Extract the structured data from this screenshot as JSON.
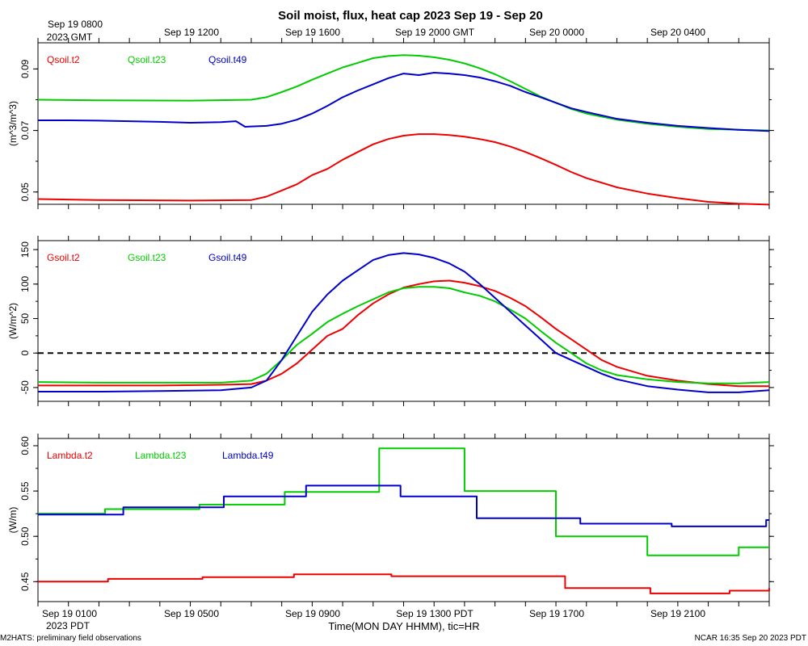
{
  "title": "Soil moist, flux, heat cap 2023 Sep 19 - Sep 20",
  "top_axis": {
    "ticks": [
      {
        "label": "Sep 19 0800",
        "sub": "2023 GMT"
      },
      {
        "label": "Sep 19 1200",
        "sub": ""
      },
      {
        "label": "Sep 19 1600",
        "sub": ""
      },
      {
        "label": "Sep 19 2000 GMT",
        "sub": ""
      },
      {
        "label": "Sep 20 0000",
        "sub": ""
      },
      {
        "label": "Sep 20 0400",
        "sub": ""
      }
    ]
  },
  "bottom_axis": {
    "ticks": [
      {
        "label": "Sep 19 0100",
        "sub": "2023 PDT"
      },
      {
        "label": "Sep 19 0500",
        "sub": ""
      },
      {
        "label": "Sep 19 0900",
        "sub": ""
      },
      {
        "label": "Sep 19 1300 PDT",
        "sub": ""
      },
      {
        "label": "Sep 19 1700",
        "sub": ""
      },
      {
        "label": "Sep 19 2100",
        "sub": ""
      }
    ],
    "xlabel": "Time(MON DAY HHMM), tic=HR"
  },
  "footer": {
    "left": "M2HATS: preliminary field observations",
    "right": "NCAR 16:35 Sep 20 2023 PDT"
  },
  "colors": {
    "t2": "#ee0000",
    "t23": "#00cc00",
    "t49": "#0000cc",
    "zero_line": "#000000"
  },
  "chart_data": [
    {
      "type": "line",
      "name": "soil-moisture",
      "ylabel": "(m^3/m^3)",
      "xlim": [
        0,
        24
      ],
      "x_units": "hours after Sep 19 0100 PDT",
      "ylim": [
        0.046,
        0.0985
      ],
      "yticks": [
        0.05,
        0.07,
        0.09
      ],
      "ytick_labels": [
        "0.05",
        "0.07",
        "0.09"
      ],
      "series": [
        {
          "name": "Qsoil.t2",
          "color": "#ee0000",
          "step": false,
          "x": [
            0,
            2,
            5,
            7,
            7.5,
            8,
            8.5,
            9,
            9.5,
            10,
            10.5,
            11,
            11.5,
            12,
            12.5,
            13,
            13.5,
            14,
            14.5,
            15,
            15.5,
            16,
            16.5,
            17,
            17.5,
            18,
            19,
            20,
            21,
            22,
            23,
            24
          ],
          "y": [
            0.0477,
            0.0474,
            0.0472,
            0.0474,
            0.0485,
            0.0505,
            0.0525,
            0.0555,
            0.0575,
            0.0605,
            0.063,
            0.0655,
            0.0672,
            0.0683,
            0.0688,
            0.0688,
            0.0685,
            0.068,
            0.0672,
            0.0662,
            0.0648,
            0.063,
            0.061,
            0.0588,
            0.0565,
            0.0545,
            0.0515,
            0.0495,
            0.048,
            0.0468,
            0.0462,
            0.0459
          ]
        },
        {
          "name": "Qsoil.t23",
          "color": "#00cc00",
          "step": false,
          "x": [
            0,
            2,
            5,
            7,
            7.5,
            8,
            8.5,
            9,
            9.5,
            10,
            10.5,
            11,
            11.5,
            12,
            12.5,
            13,
            13.5,
            14,
            14.5,
            15,
            15.5,
            16,
            16.5,
            17,
            17.5,
            18,
            19,
            20,
            21,
            22,
            23,
            24
          ],
          "y": [
            0.08,
            0.0798,
            0.0797,
            0.08,
            0.0808,
            0.0825,
            0.0843,
            0.0865,
            0.0885,
            0.0905,
            0.092,
            0.0935,
            0.0942,
            0.0945,
            0.0943,
            0.0938,
            0.093,
            0.0918,
            0.0902,
            0.0883,
            0.086,
            0.0835,
            0.081,
            0.079,
            0.077,
            0.0755,
            0.0735,
            0.0722,
            0.0712,
            0.0705,
            0.0702,
            0.07
          ]
        },
        {
          "name": "Qsoil.t49",
          "color": "#0000cc",
          "step": false,
          "x": [
            0,
            1,
            2,
            3,
            4,
            5,
            6,
            6.5,
            6.8,
            7,
            7.5,
            8,
            8.5,
            9,
            9.5,
            10,
            10.5,
            11,
            11.5,
            12,
            12.5,
            13,
            13.5,
            14,
            14.5,
            15,
            15.5,
            16,
            16.5,
            17,
            17.5,
            18,
            19,
            20,
            21,
            22,
            23,
            24
          ],
          "y": [
            0.0733,
            0.0733,
            0.0732,
            0.073,
            0.0728,
            0.0725,
            0.0727,
            0.073,
            0.0712,
            0.0713,
            0.0715,
            0.0722,
            0.0735,
            0.0755,
            0.078,
            0.0808,
            0.083,
            0.085,
            0.087,
            0.0885,
            0.088,
            0.0888,
            0.0885,
            0.088,
            0.0872,
            0.086,
            0.0845,
            0.0825,
            0.0808,
            0.079,
            0.0772,
            0.076,
            0.0738,
            0.0725,
            0.0715,
            0.0708,
            0.0702,
            0.0698
          ]
        }
      ]
    },
    {
      "type": "line",
      "name": "heat-flux",
      "ylabel": "(W/m^2)",
      "xlim": [
        0,
        24
      ],
      "x_units": "hours after Sep 19 0100 PDT",
      "ylim": [
        -70,
        163
      ],
      "yticks": [
        -50,
        0,
        50,
        100,
        150
      ],
      "ytick_labels": [
        "-50",
        "0",
        "50",
        "100",
        "150"
      ],
      "zero_line": true,
      "series": [
        {
          "name": "Gsoil.t2",
          "color": "#ee0000",
          "step": false,
          "x": [
            0,
            2,
            4,
            6,
            7,
            7.5,
            8,
            8.5,
            9,
            9.5,
            10,
            10.5,
            11,
            11.5,
            12,
            12.5,
            13,
            13.5,
            14,
            14.5,
            15,
            15.5,
            16,
            16.5,
            17,
            17.5,
            18,
            18.5,
            19,
            20,
            21,
            22,
            23,
            24
          ],
          "y": [
            -47,
            -47,
            -47,
            -46,
            -45,
            -40,
            -30,
            -15,
            5,
            25,
            35,
            55,
            72,
            85,
            95,
            100,
            104,
            105,
            102,
            97,
            90,
            80,
            68,
            52,
            35,
            20,
            5,
            -10,
            -20,
            -33,
            -40,
            -45,
            -48,
            -48
          ]
        },
        {
          "name": "Gsoil.t23",
          "color": "#00cc00",
          "step": false,
          "x": [
            0,
            2,
            4,
            6,
            7,
            7.5,
            8,
            8.5,
            9,
            9.5,
            10,
            10.5,
            11,
            11.5,
            12,
            12.5,
            13,
            13.5,
            14,
            14.5,
            15,
            15.5,
            16,
            16.5,
            17,
            17.5,
            18,
            18.5,
            19,
            20,
            21,
            22,
            23,
            24
          ],
          "y": [
            -42,
            -43,
            -43,
            -43,
            -40,
            -30,
            -10,
            12,
            28,
            45,
            57,
            68,
            78,
            88,
            94,
            96,
            96,
            94,
            88,
            83,
            75,
            63,
            50,
            32,
            15,
            0,
            -15,
            -25,
            -32,
            -38,
            -42,
            -44,
            -44,
            -42
          ]
        },
        {
          "name": "Gsoil.t49",
          "color": "#0000cc",
          "step": false,
          "x": [
            0,
            2,
            4,
            6,
            7,
            7.5,
            8,
            8.5,
            9,
            9.5,
            10,
            10.5,
            11,
            11.5,
            12,
            12.5,
            13,
            13.5,
            14,
            14.5,
            15,
            15.5,
            16,
            16.5,
            17,
            17.5,
            18,
            18.5,
            19,
            20,
            21,
            22,
            23,
            24
          ],
          "y": [
            -56,
            -56,
            -55,
            -54,
            -50,
            -40,
            -10,
            25,
            60,
            85,
            105,
            120,
            135,
            142,
            145,
            143,
            138,
            130,
            118,
            100,
            80,
            60,
            40,
            20,
            0,
            -10,
            -20,
            -30,
            -38,
            -48,
            -53,
            -57,
            -57,
            -54
          ]
        }
      ]
    },
    {
      "type": "line",
      "name": "thermal-conductivity",
      "ylabel": "(W/m)",
      "xlim": [
        0,
        24
      ],
      "x_units": "hours after Sep 19 0100 PDT",
      "ylim": [
        0.428,
        0.608
      ],
      "yticks": [
        0.45,
        0.5,
        0.55,
        0.6
      ],
      "ytick_labels": [
        "0.45",
        "0.50",
        "0.55",
        "0.60"
      ],
      "series": [
        {
          "name": "Lambda.t2",
          "color": "#ee0000",
          "step": true,
          "x": [
            0,
            2.3,
            5.4,
            8.4,
            11.6,
            14.7,
            17.3,
            20.1,
            22.7,
            24
          ],
          "y": [
            0.45,
            0.453,
            0.455,
            0.458,
            0.456,
            0.456,
            0.443,
            0.437,
            0.44,
            0.443
          ]
        },
        {
          "name": "Lambda.t23",
          "color": "#00cc00",
          "step": true,
          "x": [
            0,
            2.2,
            5.3,
            8.1,
            11.2,
            14.0,
            17.0,
            20.0,
            23.0,
            24
          ],
          "y": [
            0.525,
            0.53,
            0.535,
            0.549,
            0.597,
            0.55,
            0.5,
            0.479,
            0.488,
            0.488
          ]
        },
        {
          "name": "Lambda.t49",
          "color": "#0000cc",
          "step": true,
          "x": [
            0,
            2.8,
            6.1,
            8.8,
            11.9,
            14.4,
            17.8,
            20.8,
            23.9,
            24
          ],
          "y": [
            0.524,
            0.532,
            0.544,
            0.556,
            0.544,
            0.52,
            0.514,
            0.511,
            0.518,
            0.518
          ]
        }
      ]
    }
  ]
}
